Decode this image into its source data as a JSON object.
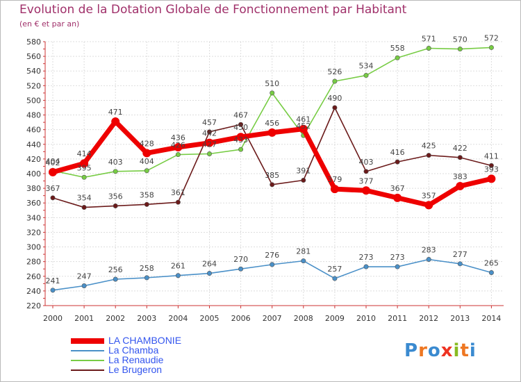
{
  "title": "Evolution de la Dotation Globale de Fonctionnement par Habitant",
  "subtitle": "(en € et par an)",
  "logo": "Proxiti",
  "chart_data": {
    "type": "line",
    "x": [
      "2000",
      "2001",
      "2002",
      "2003",
      "2004",
      "2005",
      "2006",
      "2007",
      "2008",
      "2009",
      "2010",
      "2011",
      "2012",
      "2013",
      "2014"
    ],
    "ylim": [
      220,
      580
    ],
    "yticks": [
      220,
      240,
      260,
      280,
      300,
      320,
      340,
      360,
      380,
      400,
      420,
      440,
      460,
      480,
      500,
      520,
      540,
      560,
      580
    ],
    "series": [
      {
        "name": "LA CHAMBONIE",
        "color": "#ee0000",
        "values": [
          402,
          414,
          471,
          428,
          436,
          442,
          450,
          456,
          461,
          379,
          377,
          367,
          357,
          383,
          393
        ]
      },
      {
        "name": "La Chamba",
        "color": "#4a90c8",
        "values": [
          241,
          247,
          256,
          258,
          261,
          264,
          270,
          276,
          281,
          257,
          273,
          273,
          283,
          277,
          265
        ]
      },
      {
        "name": "La Renaudie",
        "color": "#77cc44",
        "values": [
          404,
          395,
          403,
          404,
          426,
          427,
          433,
          510,
          452,
          526,
          534,
          558,
          571,
          570,
          572
        ]
      },
      {
        "name": "Le Brugeron",
        "color": "#6b1a1a",
        "values": [
          367,
          354,
          356,
          358,
          361,
          457,
          467,
          385,
          391,
          490,
          403,
          416,
          425,
          422,
          411
        ]
      }
    ]
  }
}
